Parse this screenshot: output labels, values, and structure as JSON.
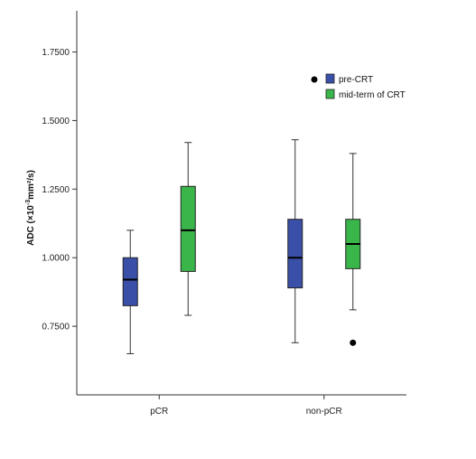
{
  "chart_data": {
    "type": "boxplot",
    "ylabel_parts": {
      "main": "ADC (×10",
      "sup": "-3",
      "tail": "mm²/s)"
    },
    "ylim": [
      0.5,
      1.9
    ],
    "yticks": [
      0.75,
      1.0,
      1.25,
      1.5,
      1.75
    ],
    "ytick_labels": [
      "0.7500",
      "1.0000",
      "1.2500",
      "1.5000",
      "1.7500"
    ],
    "categories": [
      "pCR",
      "non-pCR"
    ],
    "series": [
      {
        "name": "pre-CRT",
        "color": "#3a4fa8",
        "boxes": [
          {
            "min": 0.65,
            "q1": 0.825,
            "median": 0.92,
            "q3": 1.0,
            "max": 1.1,
            "outliers": []
          },
          {
            "min": 0.69,
            "q1": 0.89,
            "median": 1.0,
            "q3": 1.14,
            "max": 1.43,
            "outliers": []
          }
        ]
      },
      {
        "name": "mid-term of CRT",
        "color": "#3ab54a",
        "boxes": [
          {
            "min": 0.79,
            "q1": 0.95,
            "median": 1.1,
            "q3": 1.26,
            "max": 1.42,
            "outliers": []
          },
          {
            "min": 0.81,
            "q1": 0.96,
            "median": 1.05,
            "q3": 1.14,
            "max": 1.38,
            "outliers": [
              0.69
            ]
          }
        ]
      }
    ],
    "legend": {
      "position": "top-right"
    }
  }
}
